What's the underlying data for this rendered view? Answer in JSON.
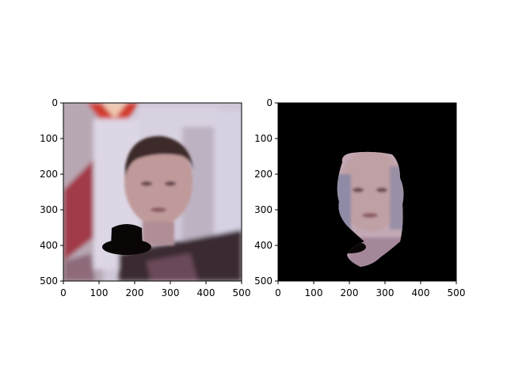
{
  "figure": {
    "panels": [
      {
        "id": "left",
        "image": "photo-of-face-with-hat-overlay",
        "x_ticks": [
          "0",
          "100",
          "200",
          "300",
          "400",
          "500"
        ],
        "y_ticks": [
          "0",
          "100",
          "200",
          "300",
          "400",
          "500"
        ],
        "xlim": [
          0,
          500
        ],
        "ylim": [
          0,
          500
        ]
      },
      {
        "id": "right",
        "image": "segmented-face-on-black",
        "x_ticks": [
          "0",
          "100",
          "200",
          "300",
          "400",
          "500"
        ],
        "y_ticks": [
          "0",
          "100",
          "200",
          "300",
          "400",
          "500"
        ],
        "xlim": [
          0,
          500
        ],
        "ylim": [
          0,
          500
        ]
      }
    ],
    "colors": {
      "background_black": "#000000",
      "hat": "#0a0606"
    }
  }
}
